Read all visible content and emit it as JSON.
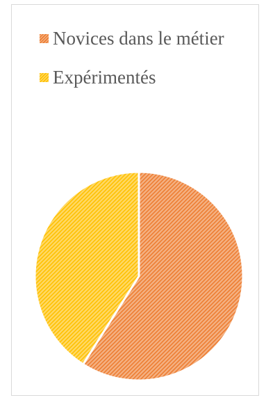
{
  "chart_data": {
    "type": "pie",
    "categories": [
      "Novices dans le métier",
      "Expérimentés"
    ],
    "values": [
      59,
      41
    ],
    "colors": [
      "#f4b183",
      "#ffd966"
    ],
    "hatch_colors": [
      "#ed7d31",
      "#ffc000"
    ],
    "legend_position": "top",
    "title": ""
  }
}
